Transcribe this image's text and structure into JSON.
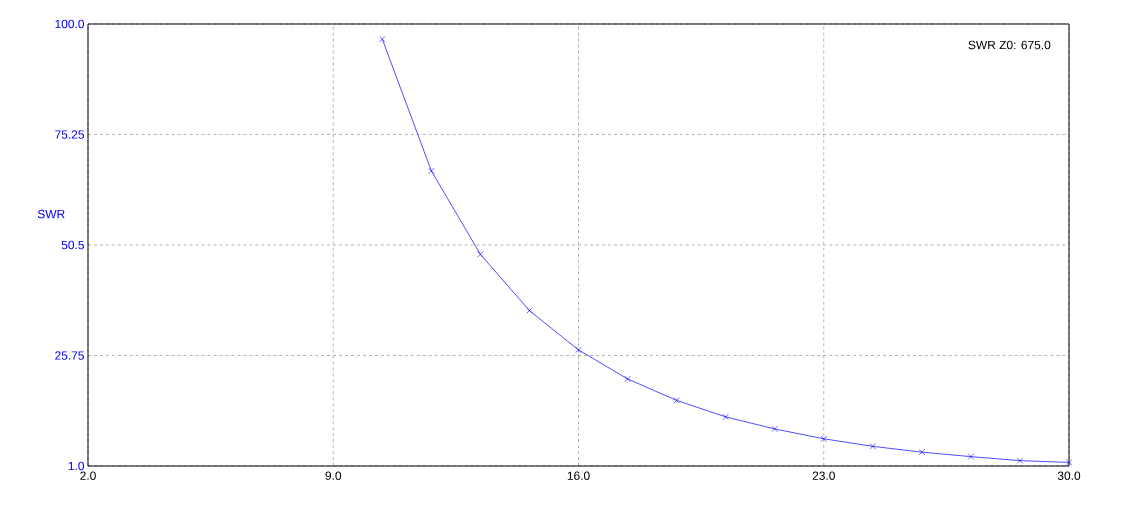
{
  "chart_data": {
    "type": "line",
    "ylabel": "SWR",
    "annotations": [
      "SWR Z0: 675.0"
    ],
    "x": [
      10.4,
      11.8,
      13.2,
      14.6,
      16.0,
      17.4,
      18.8,
      20.2,
      21.6,
      23.0,
      24.4,
      25.8,
      27.2,
      28.6,
      30.0
    ],
    "series": [
      {
        "color": "#0000ff",
        "values": [
          96.6,
          67.1,
          48.4,
          35.8,
          27.0,
          20.5,
          15.7,
          12.0,
          9.3,
          7.1,
          5.4,
          4.1,
          3.1,
          2.2,
          1.8
        ]
      }
    ],
    "xlim": [
      2.0,
      30.0
    ],
    "ylim": [
      1.0,
      100.0
    ],
    "xticks": [
      {
        "value": 2.0,
        "label": "2.0"
      },
      {
        "value": 9.0,
        "label": "9.0"
      },
      {
        "value": 16.0,
        "label": "16.0"
      },
      {
        "value": 23.0,
        "label": "23.0"
      },
      {
        "value": 30.0,
        "label": "30.0"
      }
    ],
    "yticks": [
      {
        "value": 1.0,
        "label": "1.0"
      },
      25.75,
      50.5,
      75.25,
      {
        "value": 100.0,
        "label": "100.0"
      }
    ],
    "grid": true,
    "marker": "cross",
    "line_style": "solid"
  }
}
